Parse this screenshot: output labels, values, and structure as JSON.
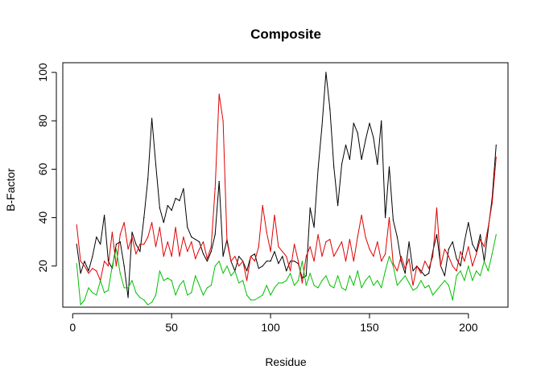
{
  "chart_data": {
    "type": "line",
    "title": "Composite",
    "xlabel": "Residue",
    "ylabel": "B-Factor",
    "xlim": [
      -5,
      220
    ],
    "ylim": [
      3,
      104
    ],
    "xticks": [
      0,
      50,
      100,
      150,
      200
    ],
    "yticks": [
      20,
      40,
      60,
      80,
      100
    ],
    "grid": false,
    "series": [
      {
        "color": "#000000",
        "x": [
          2,
          4,
          6,
          8,
          10,
          12,
          14,
          16,
          18,
          20,
          22,
          24,
          26,
          28,
          30,
          32,
          34,
          36,
          38,
          40,
          42,
          44,
          46,
          48,
          50,
          52,
          54,
          56,
          58,
          60,
          62,
          64,
          66,
          68,
          70,
          72,
          74,
          76,
          78,
          80,
          82,
          84,
          86,
          88,
          90,
          92,
          94,
          96,
          98,
          100,
          102,
          104,
          106,
          108,
          110,
          112,
          114,
          116,
          118,
          120,
          122,
          124,
          126,
          128,
          130,
          132,
          134,
          136,
          138,
          140,
          142,
          144,
          146,
          148,
          150,
          152,
          154,
          156,
          158,
          160,
          162,
          164,
          166,
          168,
          170,
          172,
          174,
          176,
          178,
          180,
          182,
          184,
          186,
          188,
          190,
          192,
          194,
          196,
          198,
          200,
          202,
          204,
          206,
          208,
          210,
          212,
          214
        ],
        "y": [
          29,
          17,
          22,
          18,
          24,
          32,
          29,
          41,
          22,
          19,
          29,
          30,
          20,
          7,
          34,
          29,
          26,
          40,
          56,
          81,
          62,
          44,
          38,
          45,
          43,
          48,
          47,
          52,
          36,
          32,
          31,
          30,
          25,
          22,
          26,
          33,
          55,
          24,
          31,
          22,
          18,
          24,
          22,
          18,
          24,
          25,
          19,
          20,
          22,
          22,
          26,
          21,
          24,
          18,
          22,
          22,
          21,
          15,
          16,
          44,
          36,
          60,
          78,
          100,
          85,
          61,
          45,
          62,
          70,
          64,
          79,
          75,
          64,
          72,
          79,
          73,
          62,
          80,
          40,
          61,
          39,
          32,
          22,
          17,
          30,
          18,
          20,
          18,
          16,
          17,
          26,
          33,
          20,
          16,
          27,
          30,
          23,
          20,
          30,
          38,
          29,
          26,
          33,
          22,
          35,
          48,
          70
        ]
      },
      {
        "color": "#df0000",
        "x": [
          2,
          4,
          6,
          8,
          10,
          12,
          14,
          16,
          18,
          20,
          22,
          24,
          26,
          28,
          30,
          32,
          34,
          36,
          38,
          40,
          42,
          44,
          46,
          48,
          50,
          52,
          54,
          56,
          58,
          60,
          62,
          64,
          66,
          68,
          70,
          72,
          74,
          76,
          78,
          80,
          82,
          84,
          86,
          88,
          90,
          92,
          94,
          96,
          98,
          100,
          102,
          104,
          106,
          108,
          110,
          112,
          114,
          116,
          118,
          120,
          122,
          124,
          126,
          128,
          130,
          132,
          134,
          136,
          138,
          140,
          142,
          144,
          146,
          148,
          150,
          152,
          154,
          156,
          158,
          160,
          162,
          164,
          166,
          168,
          170,
          172,
          174,
          176,
          178,
          180,
          182,
          184,
          186,
          188,
          190,
          192,
          194,
          196,
          198,
          200,
          202,
          204,
          206,
          208,
          210,
          212,
          214
        ],
        "y": [
          37,
          22,
          20,
          17,
          19,
          18,
          14,
          22,
          20,
          34,
          20,
          33,
          38,
          27,
          32,
          25,
          29,
          29,
          32,
          38,
          28,
          36,
          24,
          30,
          24,
          36,
          24,
          32,
          26,
          30,
          23,
          27,
          30,
          23,
          28,
          52,
          91,
          80,
          30,
          22,
          24,
          20,
          22,
          14,
          24,
          22,
          28,
          45,
          34,
          26,
          41,
          28,
          26,
          24,
          18,
          29,
          22,
          13,
          24,
          28,
          22,
          33,
          24,
          30,
          31,
          24,
          27,
          30,
          22,
          31,
          22,
          32,
          41,
          32,
          27,
          24,
          30,
          22,
          25,
          40,
          21,
          18,
          24,
          19,
          23,
          12,
          20,
          17,
          22,
          19,
          24,
          44,
          20,
          27,
          24,
          20,
          18,
          26,
          22,
          28,
          20,
          25,
          31,
          28,
          36,
          46,
          65
        ]
      },
      {
        "color": "#00c000",
        "x": [
          2,
          4,
          6,
          8,
          10,
          12,
          14,
          16,
          18,
          20,
          22,
          24,
          26,
          28,
          30,
          32,
          34,
          36,
          38,
          40,
          42,
          44,
          46,
          48,
          50,
          52,
          54,
          56,
          58,
          60,
          62,
          64,
          66,
          68,
          70,
          72,
          74,
          76,
          78,
          80,
          82,
          84,
          86,
          88,
          90,
          92,
          94,
          96,
          98,
          100,
          102,
          104,
          106,
          108,
          110,
          112,
          114,
          116,
          118,
          120,
          122,
          124,
          126,
          128,
          130,
          132,
          134,
          136,
          138,
          140,
          142,
          144,
          146,
          148,
          150,
          152,
          154,
          156,
          158,
          160,
          162,
          164,
          166,
          168,
          170,
          172,
          174,
          176,
          178,
          180,
          182,
          184,
          186,
          188,
          190,
          192,
          194,
          196,
          198,
          200,
          202,
          204,
          206,
          208,
          210,
          212,
          214
        ],
        "y": [
          21,
          4,
          6,
          11,
          9,
          8,
          14,
          9,
          10,
          20,
          27,
          17,
          11,
          11,
          14,
          9,
          7,
          6,
          4,
          5,
          8,
          18,
          14,
          15,
          14,
          8,
          12,
          14,
          8,
          9,
          16,
          12,
          8,
          11,
          12,
          20,
          22,
          17,
          20,
          16,
          18,
          13,
          14,
          8,
          6,
          6,
          7,
          8,
          12,
          8,
          11,
          13,
          13,
          14,
          17,
          12,
          14,
          22,
          12,
          17,
          12,
          11,
          14,
          16,
          12,
          11,
          16,
          11,
          10,
          16,
          12,
          18,
          11,
          14,
          16,
          12,
          14,
          11,
          18,
          24,
          20,
          12,
          14,
          16,
          13,
          10,
          11,
          14,
          11,
          12,
          8,
          10,
          12,
          14,
          12,
          6,
          16,
          18,
          14,
          20,
          14,
          18,
          16,
          22,
          18,
          25,
          33
        ]
      }
    ]
  }
}
